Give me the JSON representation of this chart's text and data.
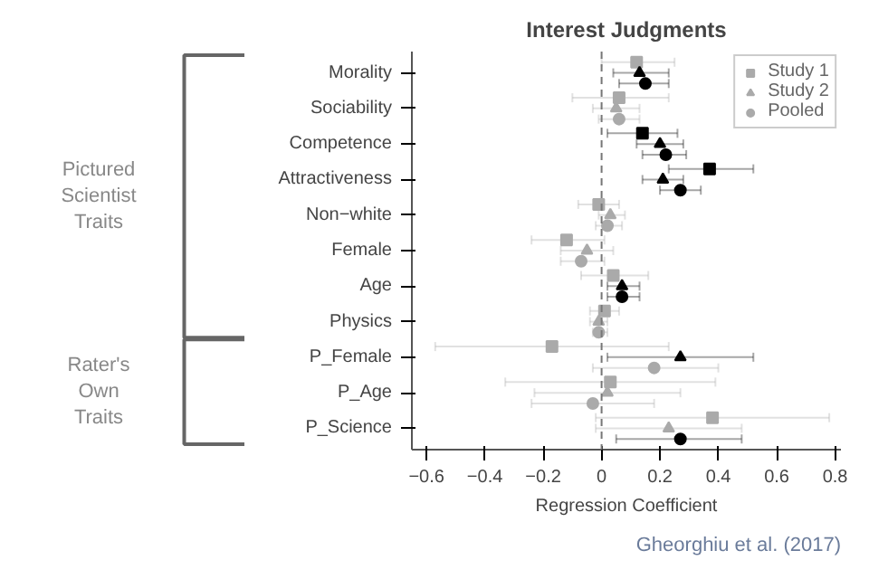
{
  "chart_data": {
    "type": "scatter",
    "orientation": "horizontal",
    "title": "Interest Judgments",
    "xlabel": "Regression Coefficient",
    "categories": [
      "Morality",
      "Sociability",
      "Competence",
      "Attractiveness",
      "Non−white",
      "Female",
      "Age",
      "Physics",
      "P_Female",
      "P_Age",
      "P_Science"
    ],
    "series": [
      {
        "name": "Study 1",
        "color": "#aaaaaa",
        "marker": "square",
        "values": [
          0.12,
          0.06,
          0.14,
          0.37,
          -0.01,
          -0.12,
          0.04,
          0.01,
          -0.17,
          0.03,
          0.38
        ],
        "errors": [
          [
            0.0,
            0.25
          ],
          [
            -0.1,
            0.23
          ],
          [
            0.02,
            0.26
          ],
          [
            0.23,
            0.52
          ],
          [
            -0.08,
            0.06
          ],
          [
            -0.24,
            0.01
          ],
          [
            -0.07,
            0.16
          ],
          [
            -0.04,
            0.06
          ],
          [
            -0.57,
            0.23
          ],
          [
            -0.33,
            0.39
          ],
          [
            -0.02,
            0.78
          ]
        ],
        "colors": [
          "#aaaaaa",
          "#aaaaaa",
          "#000000",
          "#000000",
          "#aaaaaa",
          "#aaaaaa",
          "#aaaaaa",
          "#aaaaaa",
          "#aaaaaa",
          "#aaaaaa",
          "#aaaaaa"
        ]
      },
      {
        "name": "Study 2",
        "color": "#aaaaaa",
        "marker": "triangle",
        "values": [
          0.13,
          0.05,
          0.2,
          0.21,
          0.03,
          -0.05,
          0.07,
          -0.01,
          0.27,
          0.02,
          0.23
        ],
        "errors": [
          [
            0.04,
            0.23
          ],
          [
            -0.03,
            0.13
          ],
          [
            0.12,
            0.28
          ],
          [
            0.14,
            0.28
          ],
          [
            -0.01,
            0.08
          ],
          [
            -0.14,
            0.04
          ],
          [
            0.02,
            0.13
          ],
          [
            -0.04,
            0.02
          ],
          [
            0.02,
            0.52
          ],
          [
            -0.23,
            0.27
          ],
          [
            -0.02,
            0.48
          ]
        ],
        "colors": [
          "#000000",
          "#aaaaaa",
          "#000000",
          "#000000",
          "#aaaaaa",
          "#aaaaaa",
          "#000000",
          "#aaaaaa",
          "#000000",
          "#aaaaaa",
          "#aaaaaa"
        ]
      },
      {
        "name": "Pooled",
        "color": "#aaaaaa",
        "marker": "circle",
        "values": [
          0.15,
          0.06,
          0.22,
          0.27,
          0.02,
          -0.07,
          0.07,
          -0.01,
          0.18,
          -0.03,
          0.27
        ],
        "errors": [
          [
            0.06,
            0.23
          ],
          [
            -0.01,
            0.13
          ],
          [
            0.14,
            0.29
          ],
          [
            0.2,
            0.34
          ],
          [
            -0.02,
            0.07
          ],
          [
            -0.14,
            0.01
          ],
          [
            0.02,
            0.13
          ],
          [
            -0.03,
            0.02
          ],
          [
            -0.03,
            0.4
          ],
          [
            -0.24,
            0.18
          ],
          [
            0.05,
            0.48
          ]
        ],
        "colors": [
          "#000000",
          "#aaaaaa",
          "#000000",
          "#000000",
          "#aaaaaa",
          "#aaaaaa",
          "#000000",
          "#aaaaaa",
          "#aaaaaa",
          "#aaaaaa",
          "#000000"
        ]
      }
    ],
    "xlim": [
      -0.65,
      0.82
    ],
    "xticks": [
      {
        "value": -0.6,
        "label": "−0.6"
      },
      {
        "value": -0.4,
        "label": "−0.4"
      },
      {
        "value": -0.2,
        "label": "−0.2"
      },
      0.0,
      0.2,
      0.4,
      0.6,
      0.8
    ],
    "ref_lines": [
      {
        "axis": "x",
        "value": 0,
        "label": null,
        "color": "#777777",
        "line_style": "dashed"
      }
    ],
    "legend": "top right",
    "grid": false,
    "annotations": [
      "Pictured Scientist Traits",
      "Rater's Own Traits",
      "Gheorghiu et al. (2017)"
    ]
  }
}
